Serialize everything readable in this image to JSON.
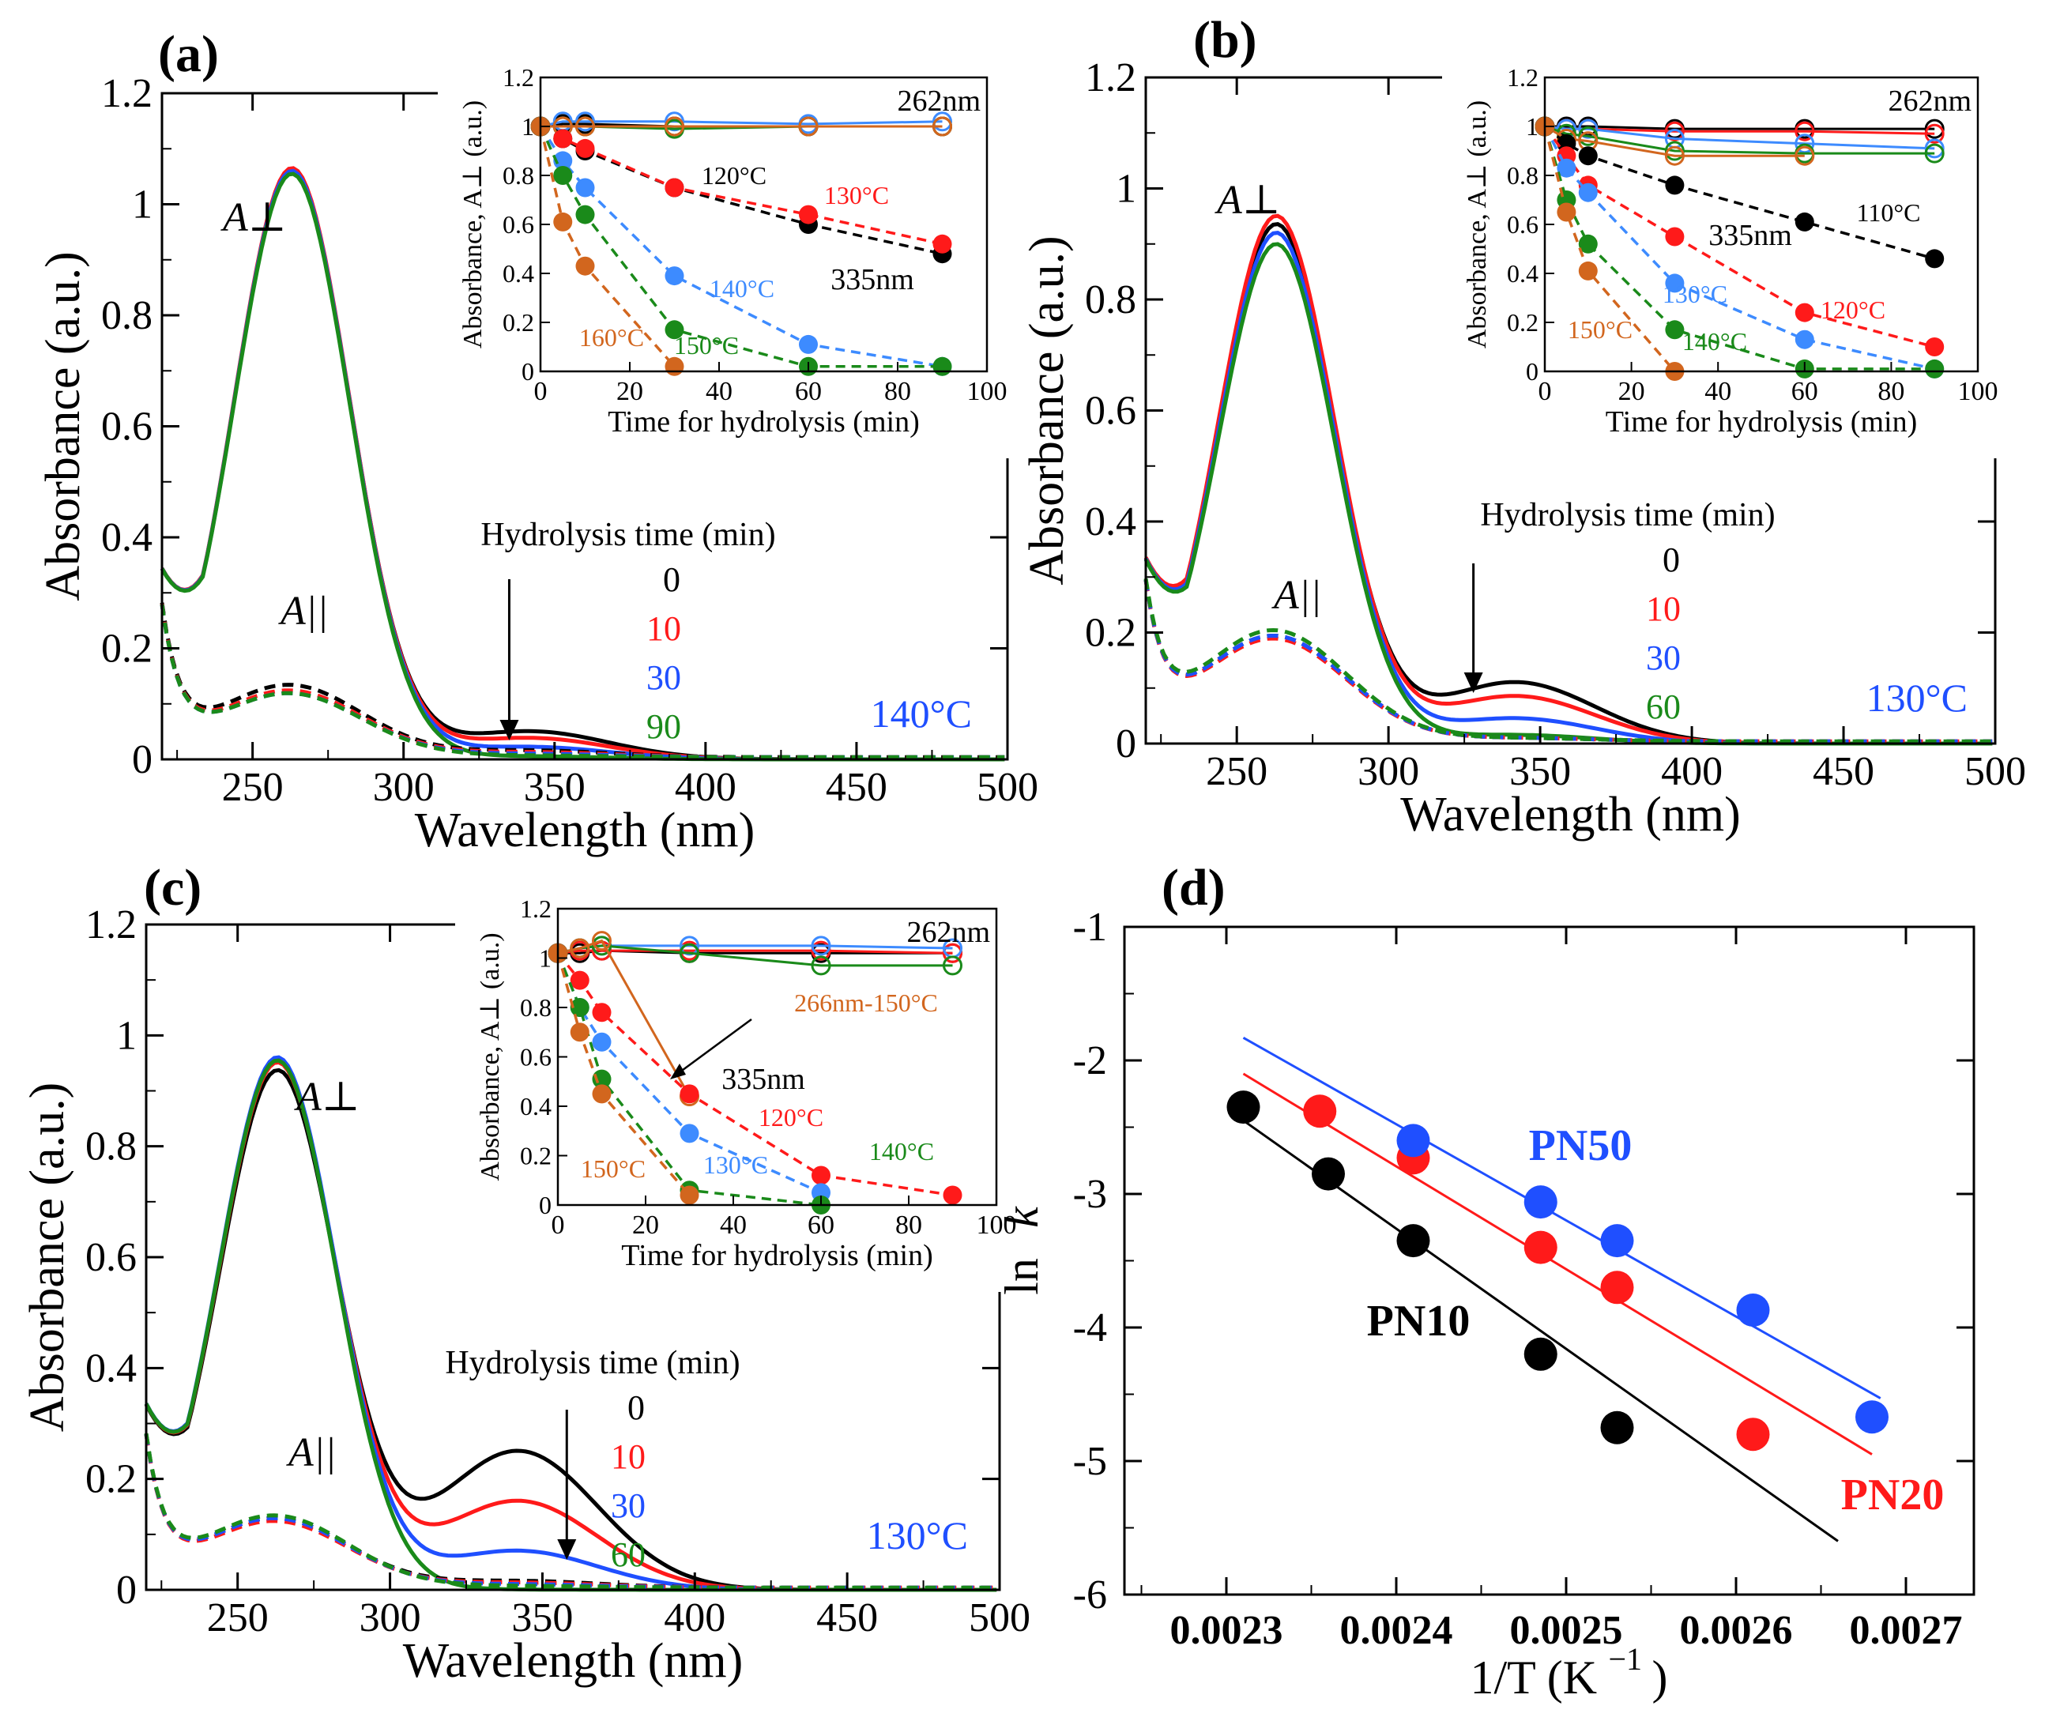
{
  "colors": {
    "black": "#000000",
    "red": "#ff1a1a",
    "blue": "#1f4fff",
    "green": "#1a8a1a",
    "skyblue": "#3d8bff",
    "orange": "#d2661e",
    "teal": "#0a8a8a"
  },
  "chart_data": [
    {
      "id": "a",
      "type": "line",
      "panel_label": "(a)",
      "xlabel": "Wavelength (nm)",
      "ylabel": "Absorbance (a.u.)",
      "xlim": [
        220,
        500
      ],
      "ylim": [
        0,
        1.2
      ],
      "xticks": [
        "250",
        "300",
        "350",
        "400",
        "450",
        "500"
      ],
      "yticks": [
        "0",
        "0.2",
        "0.4",
        "0.6",
        "0.8",
        "1",
        "1.2"
      ],
      "label_perp": "A⊥",
      "label_par": "A||",
      "temperature": "140°C",
      "legend_title": "Hydrolysis time (min)",
      "legend": [
        "0",
        "10",
        "30",
        "90"
      ],
      "arrow_x": 335,
      "series": [
        {
          "name": "0",
          "kind": "perp",
          "color": "black",
          "peak": 1.045,
          "shoulder": 0.05
        },
        {
          "name": "10",
          "kind": "perp",
          "color": "red",
          "peak": 1.05,
          "shoulder": 0.038
        },
        {
          "name": "30",
          "kind": "perp",
          "color": "blue",
          "peak": 1.045,
          "shoulder": 0.022
        },
        {
          "name": "90",
          "kind": "perp",
          "color": "green",
          "peak": 1.04,
          "shoulder": 0.005
        },
        {
          "name": "0",
          "kind": "par",
          "color": "black",
          "peak": 0.13,
          "shoulder": 0.02
        },
        {
          "name": "10",
          "kind": "par",
          "color": "red",
          "peak": 0.12,
          "shoulder": 0.015
        },
        {
          "name": "30",
          "kind": "par",
          "color": "blue",
          "peak": 0.115,
          "shoulder": 0.01
        },
        {
          "name": "90",
          "kind": "par",
          "color": "green",
          "peak": 0.115,
          "shoulder": 0.005
        }
      ],
      "inset": {
        "xlabel": "Time for hydrolysis (min)",
        "ylabel": "Absorbance, A⊥ (a.u.)",
        "xlim": [
          0,
          100
        ],
        "ylim": [
          0,
          1.2
        ],
        "xticks": [
          "0",
          "20",
          "40",
          "60",
          "80",
          "100"
        ],
        "yticks": [
          "0",
          "0.2",
          "0.4",
          "0.6",
          "0.8",
          "1",
          "1.2"
        ],
        "label_262": "262nm",
        "label_335": "335nm",
        "open_series": [
          {
            "color": "black",
            "x": [
              0,
              5,
              10,
              30,
              60,
              90
            ],
            "y": [
              1.0,
              1.01,
              1.01,
              1.0,
              1.0,
              1.0
            ]
          },
          {
            "color": "red",
            "x": [
              0,
              5,
              10,
              30,
              60,
              90
            ],
            "y": [
              1.0,
              1.0,
              1.0,
              1.0,
              1.0,
              1.0
            ]
          },
          {
            "color": "skyblue",
            "x": [
              0,
              5,
              10,
              30,
              60,
              90
            ],
            "y": [
              1.0,
              1.02,
              1.02,
              1.02,
              1.01,
              1.02
            ]
          },
          {
            "color": "green",
            "x": [
              0,
              5,
              10,
              30,
              60,
              90
            ],
            "y": [
              1.0,
              1.0,
              1.0,
              0.99,
              1.0,
              1.0
            ]
          },
          {
            "color": "orange",
            "x": [
              0,
              5,
              10,
              30,
              60,
              90
            ],
            "y": [
              1.0,
              1.0,
              1.0,
              1.0,
              1.0,
              1.0
            ]
          }
        ],
        "filled_series": [
          {
            "label": "120°C",
            "color": "black",
            "x": [
              0,
              5,
              10,
              30,
              60,
              90
            ],
            "y": [
              1.0,
              0.95,
              0.9,
              0.75,
              0.6,
              0.48
            ]
          },
          {
            "label": "130°C",
            "color": "red",
            "x": [
              0,
              5,
              10,
              30,
              60,
              90
            ],
            "y": [
              1.0,
              0.95,
              0.91,
              0.75,
              0.64,
              0.52
            ]
          },
          {
            "label": "140°C",
            "color": "skyblue",
            "x": [
              0,
              5,
              10,
              30,
              60,
              90
            ],
            "y": [
              1.0,
              0.86,
              0.75,
              0.39,
              0.11,
              0.02
            ]
          },
          {
            "label": "150°C",
            "color": "green",
            "x": [
              0,
              5,
              10,
              30,
              60,
              90
            ],
            "y": [
              1.0,
              0.8,
              0.64,
              0.17,
              0.02,
              0.02
            ]
          },
          {
            "label": "160°C",
            "color": "orange",
            "x": [
              0,
              5,
              10,
              30
            ],
            "y": [
              1.0,
              0.61,
              0.43,
              0.02
            ]
          }
        ]
      }
    },
    {
      "id": "b",
      "type": "line",
      "panel_label": "(b)",
      "xlabel": "Wavelength (nm)",
      "ylabel": "Absorbance (a.u.)",
      "xlim": [
        220,
        500
      ],
      "ylim": [
        0,
        1.2
      ],
      "xticks": [
        "250",
        "300",
        "350",
        "400",
        "450",
        "500"
      ],
      "yticks": [
        "0",
        "0.2",
        "0.4",
        "0.6",
        "0.8",
        "1",
        "1.2"
      ],
      "label_perp": "A⊥",
      "label_par": "A||",
      "temperature": "130°C",
      "legend_title": "Hydrolysis time (min)",
      "legend": [
        "0",
        "10",
        "30",
        "60"
      ],
      "arrow_x": 328,
      "series": [
        {
          "name": "0",
          "kind": "perp",
          "color": "black",
          "peak": 0.92,
          "shoulder": 0.11
        },
        {
          "name": "10",
          "kind": "perp",
          "color": "red",
          "peak": 0.935,
          "shoulder": 0.085
        },
        {
          "name": "30",
          "kind": "perp",
          "color": "blue",
          "peak": 0.905,
          "shoulder": 0.045
        },
        {
          "name": "60",
          "kind": "perp",
          "color": "green",
          "peak": 0.885,
          "shoulder": 0.015
        },
        {
          "name": "0",
          "kind": "par",
          "color": "black",
          "peak": 0.19,
          "shoulder": 0.01
        },
        {
          "name": "10",
          "kind": "par",
          "color": "red",
          "peak": 0.185,
          "shoulder": 0.01
        },
        {
          "name": "30",
          "kind": "par",
          "color": "blue",
          "peak": 0.19,
          "shoulder": 0.01
        },
        {
          "name": "60",
          "kind": "par",
          "color": "green",
          "peak": 0.2,
          "shoulder": 0.01
        }
      ],
      "inset": {
        "xlabel": "Time for hydrolysis (min)",
        "ylabel": "Absorbance, A⊥ (a.u.)",
        "xlim": [
          0,
          100
        ],
        "ylim": [
          0,
          1.2
        ],
        "xticks": [
          "0",
          "20",
          "40",
          "60",
          "80",
          "100"
        ],
        "yticks": [
          "0",
          "0.2",
          "0.4",
          "0.6",
          "0.8",
          "1",
          "1.2"
        ],
        "label_262": "262nm",
        "label_335": "335nm",
        "open_series": [
          {
            "color": "black",
            "x": [
              0,
              5,
              10,
              30,
              60,
              90
            ],
            "y": [
              1.0,
              1.0,
              1.0,
              0.99,
              0.99,
              0.99
            ]
          },
          {
            "color": "red",
            "x": [
              0,
              5,
              10,
              30,
              60,
              90
            ],
            "y": [
              1.0,
              0.99,
              0.99,
              0.98,
              0.98,
              0.97
            ]
          },
          {
            "color": "skyblue",
            "x": [
              0,
              5,
              10,
              30,
              60,
              90
            ],
            "y": [
              1.0,
              0.99,
              0.99,
              0.95,
              0.93,
              0.91
            ]
          },
          {
            "color": "green",
            "x": [
              0,
              5,
              10,
              30,
              60,
              90
            ],
            "y": [
              1.0,
              0.97,
              0.96,
              0.9,
              0.89,
              0.89
            ]
          },
          {
            "color": "orange",
            "x": [
              0,
              5,
              10,
              30,
              60
            ],
            "y": [
              1.0,
              0.95,
              0.94,
              0.88,
              0.88
            ]
          }
        ],
        "filled_series": [
          {
            "label": "110°C",
            "color": "black",
            "x": [
              0,
              5,
              10,
              30,
              60,
              90
            ],
            "y": [
              1.0,
              0.93,
              0.88,
              0.76,
              0.61,
              0.46
            ]
          },
          {
            "label": "120°C",
            "color": "red",
            "x": [
              0,
              5,
              10,
              30,
              60,
              90
            ],
            "y": [
              1.0,
              0.88,
              0.76,
              0.55,
              0.24,
              0.1
            ]
          },
          {
            "label": "130°C",
            "color": "skyblue",
            "x": [
              0,
              5,
              10,
              30,
              60,
              90
            ],
            "y": [
              1.0,
              0.83,
              0.73,
              0.36,
              0.13,
              0.01
            ]
          },
          {
            "label": "140°C",
            "color": "green",
            "x": [
              0,
              5,
              10,
              30,
              60,
              90
            ],
            "y": [
              1.0,
              0.7,
              0.52,
              0.17,
              0.01,
              0.01
            ]
          },
          {
            "label": "150°C",
            "color": "orange",
            "x": [
              0,
              5,
              10,
              30
            ],
            "y": [
              1.0,
              0.65,
              0.41,
              0.0
            ]
          }
        ]
      }
    },
    {
      "id": "c",
      "type": "line",
      "panel_label": "(c)",
      "xlabel": "Wavelength (nm)",
      "ylabel": "Absorbance (a.u.)",
      "xlim": [
        220,
        500
      ],
      "ylim": [
        0,
        1.2
      ],
      "xticks": [
        "250",
        "300",
        "350",
        "400",
        "450",
        "500"
      ],
      "yticks": [
        "0",
        "0.2",
        "0.4",
        "0.6",
        "0.8",
        "1",
        "1.2"
      ],
      "label_perp": "A⊥",
      "label_par": "A||",
      "temperature": "130°C",
      "legend_title": "Hydrolysis time (min)",
      "legend": [
        "0",
        "10",
        "30",
        "60"
      ],
      "arrow_x": 358,
      "series": [
        {
          "name": "0",
          "kind": "perp",
          "color": "black",
          "peak": 0.92,
          "shoulder": 0.25
        },
        {
          "name": "10",
          "kind": "perp",
          "color": "red",
          "peak": 0.935,
          "shoulder": 0.16
        },
        {
          "name": "30",
          "kind": "perp",
          "color": "blue",
          "peak": 0.945,
          "shoulder": 0.07
        },
        {
          "name": "60",
          "kind": "perp",
          "color": "green",
          "peak": 0.94,
          "shoulder": 0.0
        },
        {
          "name": "0",
          "kind": "par",
          "color": "black",
          "peak": 0.125,
          "shoulder": 0.02
        },
        {
          "name": "10",
          "kind": "par",
          "color": "red",
          "peak": 0.12,
          "shoulder": 0.015
        },
        {
          "name": "30",
          "kind": "par",
          "color": "blue",
          "peak": 0.125,
          "shoulder": 0.01
        },
        {
          "name": "60",
          "kind": "par",
          "color": "green",
          "peak": 0.13,
          "shoulder": 0.005
        }
      ],
      "inset": {
        "xlabel": "Time for hydrolysis (min)",
        "ylabel": "Absorbance, A⊥ (a.u.)",
        "xlim": [
          0,
          100
        ],
        "ylim": [
          0,
          1.2
        ],
        "xticks": [
          "0",
          "20",
          "40",
          "60",
          "80",
          "100"
        ],
        "yticks": [
          "0",
          "0.2",
          "0.4",
          "0.6",
          "0.8",
          "1",
          "1.2"
        ],
        "label_262": "262nm",
        "label_335": "335nm",
        "label_266": "266nm-150°C",
        "open_series": [
          {
            "color": "black",
            "x": [
              0,
              5,
              10,
              30,
              60,
              90
            ],
            "y": [
              1.02,
              1.02,
              1.03,
              1.02,
              1.02,
              1.02
            ]
          },
          {
            "color": "red",
            "x": [
              0,
              5,
              10,
              30,
              60,
              90
            ],
            "y": [
              1.02,
              1.03,
              1.03,
              1.03,
              1.03,
              1.02
            ]
          },
          {
            "color": "skyblue",
            "x": [
              0,
              5,
              10,
              30,
              60,
              90
            ],
            "y": [
              1.02,
              1.04,
              1.05,
              1.05,
              1.05,
              1.04
            ]
          },
          {
            "color": "green",
            "x": [
              0,
              5,
              10,
              30,
              60,
              90
            ],
            "y": [
              1.02,
              1.04,
              1.05,
              1.02,
              0.97,
              0.97
            ]
          },
          {
            "color": "orange",
            "x": [
              0,
              5,
              10,
              30
            ],
            "y": [
              1.02,
              1.04,
              1.07,
              0.44
            ]
          }
        ],
        "filled_series": [
          {
            "label": "120°C",
            "color": "red",
            "x": [
              0,
              5,
              10,
              30,
              60,
              90
            ],
            "y": [
              1.02,
              0.91,
              0.78,
              0.45,
              0.12,
              0.04
            ]
          },
          {
            "label": "130°C",
            "color": "skyblue",
            "x": [
              0,
              5,
              10,
              30,
              60
            ],
            "y": [
              1.02,
              0.8,
              0.66,
              0.29,
              0.05
            ]
          },
          {
            "label": "140°C",
            "color": "green",
            "x": [
              0,
              5,
              10,
              30,
              60
            ],
            "y": [
              1.02,
              0.8,
              0.51,
              0.06,
              0.0
            ]
          },
          {
            "label": "150°C",
            "color": "orange",
            "x": [
              0,
              5,
              10,
              30
            ],
            "y": [
              1.02,
              0.7,
              0.45,
              0.04
            ]
          }
        ]
      }
    },
    {
      "id": "d",
      "type": "scatter",
      "panel_label": "(d)",
      "xlabel": "1/T (K",
      "xlabel_sup": "−1",
      "xlabel_end": ")",
      "ylabel": "ln",
      "ylabel_italic": "k",
      "xlim": [
        0.00224,
        0.00274
      ],
      "ylim": [
        -6,
        -1
      ],
      "xticks": [
        "0.0023",
        "0.0024",
        "0.0025",
        "0.0026",
        "0.0027"
      ],
      "yticks": [
        "-1",
        "-2",
        "-3",
        "-4",
        "-5",
        "-6"
      ],
      "series": [
        {
          "name": "PN10",
          "color": "black",
          "x": [
            0.00231,
            0.00236,
            0.00241,
            0.002485,
            0.00253
          ],
          "y": [
            -2.35,
            -2.85,
            -3.35,
            -4.2,
            -4.75
          ],
          "fit_x": [
            0.00231,
            0.00266
          ],
          "fit_y": [
            -2.45,
            -5.6
          ]
        },
        {
          "name": "PN20",
          "color": "red",
          "x": [
            0.002355,
            0.00241,
            0.002485,
            0.00253,
            0.00261
          ],
          "y": [
            -2.38,
            -2.73,
            -3.4,
            -3.7,
            -4.8
          ],
          "fit_x": [
            0.00231,
            0.00268
          ],
          "fit_y": [
            -2.1,
            -4.95
          ]
        },
        {
          "name": "PN50",
          "color": "blue",
          "x": [
            0.00241,
            0.002485,
            0.00253,
            0.00261,
            0.00268
          ],
          "y": [
            -2.6,
            -3.06,
            -3.35,
            -3.87,
            -4.67
          ],
          "fit_x": [
            0.00231,
            0.002685
          ],
          "fit_y": [
            -1.83,
            -4.53
          ]
        }
      ]
    }
  ]
}
